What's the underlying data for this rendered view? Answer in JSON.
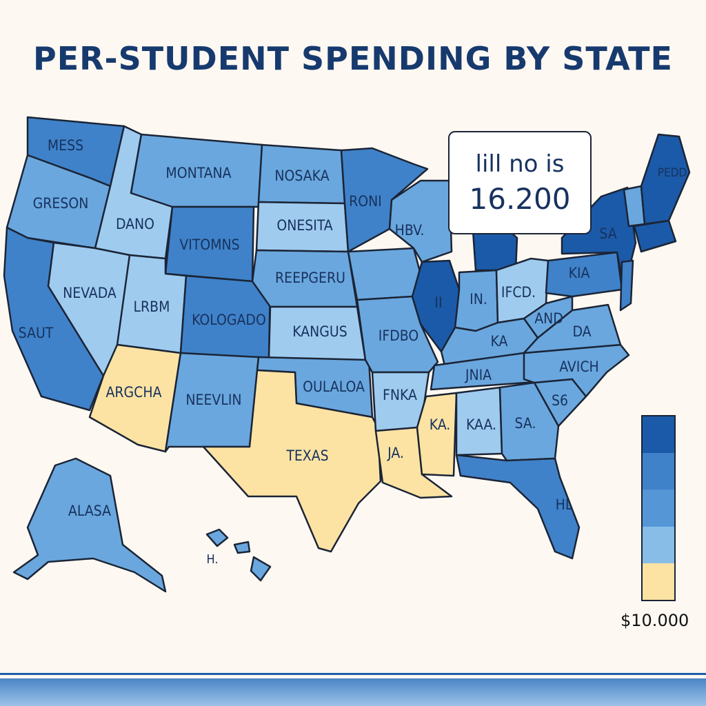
{
  "title": "PER-STUDENT SPENDING BY STATE",
  "colors": {
    "dark": "#1b5aa8",
    "mid_dark": "#3f82c9",
    "mid": "#6aa7de",
    "light": "#9fcbef",
    "tan": "#fde3a3"
  },
  "states": {
    "wa": "MESS",
    "or": "GRESON",
    "ca": "SAUT",
    "id": "DANO",
    "nv": "NEVADA",
    "mt": "MONTANA",
    "wy": "VITOMNS",
    "ut": "LRBM",
    "co": "KOLOGADO",
    "az": "ARGCHA",
    "nm": "NEEVLIN",
    "nd": "NOSAKA",
    "sd": "ONESITA",
    "ne": "REEPGERU",
    "ks": "KANGUS",
    "ok": "OULALOA",
    "tx": "TEXAS",
    "mn": "RONI",
    "ia": "IFDBO",
    "mo": "",
    "ar": "FNKA",
    "la": "JA.",
    "ms": "KA.",
    "al": "KAA.",
    "wi": "HBV.",
    "il": "II",
    "in": "IN.",
    "oh": "IFCD.",
    "mi": "",
    "ky": "KA",
    "tn": "JNIA",
    "ga": "SA.",
    "fl": "HL",
    "sc": "S6",
    "nc": "AVICH",
    "va": "DA",
    "wv": "AND",
    "pa": "KIA",
    "ny": "SA",
    "me": "PEDD",
    "ak": "ALASA",
    "hi": "H."
  },
  "callout": {
    "line1": "lill no is",
    "line2": "16.200"
  },
  "legend": {
    "label": "$10.000",
    "colors": [
      "#1b5aa8",
      "#3f82c9",
      "#5597d6",
      "#88bde8",
      "#fde3a3"
    ]
  }
}
